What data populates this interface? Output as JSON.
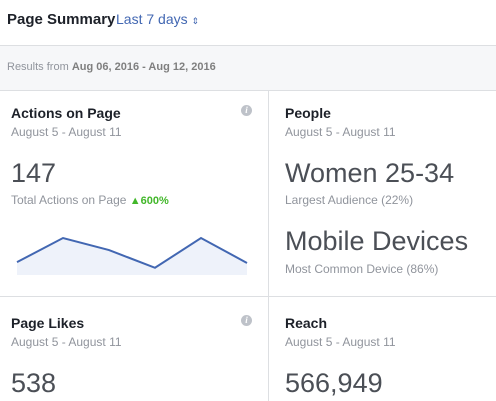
{
  "header": {
    "title": "Page Summary",
    "range_selector": "Last 7 days"
  },
  "results": {
    "prefix": "Results from",
    "dates": "Aug 06, 2016 - Aug 12, 2016"
  },
  "cards": [
    {
      "title": "Actions on Page",
      "period": "August 5 - August 11",
      "value": "147",
      "caption": "Total Actions on Page",
      "change": "600%",
      "sparkline": {
        "values": [
          10,
          40,
          25,
          3,
          40,
          9
        ],
        "ylim": [
          -6,
          50
        ]
      }
    },
    {
      "title": "People",
      "period": "August 5 - August 11",
      "items": [
        {
          "value": "Women 25-34",
          "caption": "Largest Audience (22%)"
        },
        {
          "value": "Mobile Devices",
          "caption": "Most Common Device (86%)"
        }
      ]
    },
    {
      "title": "Page Likes",
      "period": "August 5 - August 11",
      "value": "538"
    },
    {
      "title": "Reach",
      "period": "August 5 - August 11",
      "value": "566,949"
    }
  ]
}
